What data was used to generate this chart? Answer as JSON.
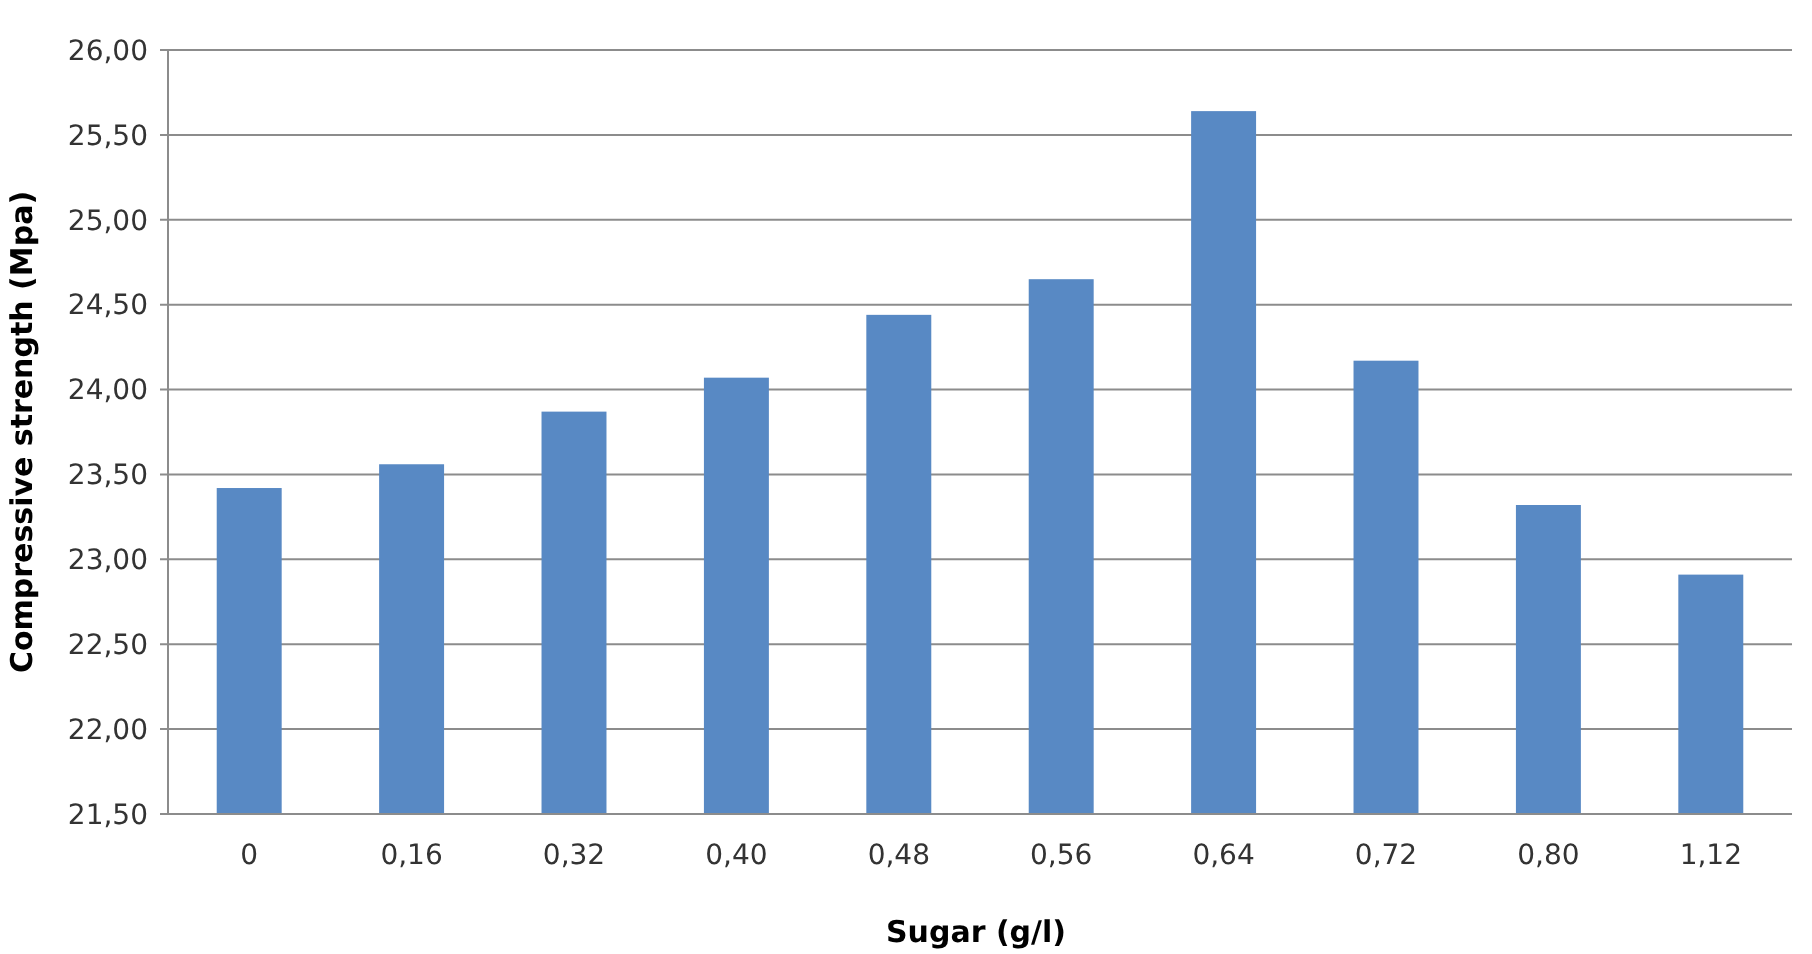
{
  "chart_data": {
    "type": "bar",
    "xlabel": "Sugar (g/l)",
    "ylabel": "Compressive strength (Mpa)",
    "categories": [
      "0",
      "0,16",
      "0,32",
      "0,40",
      "0,48",
      "0,56",
      "0,64",
      "0,72",
      "0,80",
      "1,12"
    ],
    "values": [
      23.42,
      23.56,
      23.87,
      24.07,
      24.44,
      24.65,
      25.64,
      24.17,
      23.32,
      22.91
    ],
    "color": "#5889c4",
    "ylim": [
      21.5,
      26
    ],
    "yticks": [
      {
        "value": 21.5,
        "label": "21,50"
      },
      {
        "value": 22,
        "label": "22,00"
      },
      {
        "value": 22.5,
        "label": "22,50"
      },
      {
        "value": 23,
        "label": "23,00"
      },
      {
        "value": 23.5,
        "label": "23,50"
      },
      {
        "value": 24,
        "label": "24,00"
      },
      {
        "value": 24.5,
        "label": "24,50"
      },
      {
        "value": 25,
        "label": "25,00"
      },
      {
        "value": 25.5,
        "label": "25,50"
      },
      {
        "value": 26,
        "label": "26,00"
      }
    ],
    "grid": "y"
  }
}
